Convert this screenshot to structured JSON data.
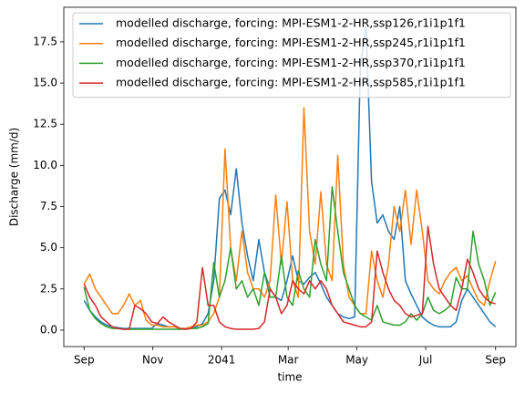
{
  "chart_data": {
    "type": "line",
    "x_label": "time",
    "y_label": "Discharge (mm/d)",
    "legend": "upper right",
    "x": [
      0,
      5,
      10,
      15,
      20,
      25,
      30,
      35,
      40,
      45,
      50,
      55,
      60,
      65,
      70,
      75,
      80,
      85,
      90,
      95,
      100,
      105,
      110,
      115,
      120,
      125,
      130,
      135,
      140,
      145,
      150,
      155,
      160,
      165,
      170,
      175,
      180,
      185,
      190,
      195,
      200,
      205,
      210,
      215,
      220,
      225,
      230,
      235,
      240,
      245,
      250,
      255,
      260,
      265,
      270,
      275,
      280,
      285,
      290,
      295,
      300,
      305,
      310,
      315,
      320,
      325,
      330,
      335,
      340,
      345,
      350,
      355,
      360,
      365
    ],
    "xlim": [
      -18,
      383
    ],
    "xticks": [
      {
        "value": 0,
        "label": "Sep"
      },
      {
        "value": 61,
        "label": "Nov"
      },
      {
        "value": 122,
        "label": "2041"
      },
      {
        "value": 181,
        "label": "Mar"
      },
      {
        "value": 242,
        "label": "May"
      },
      {
        "value": 303,
        "label": "Jul"
      },
      {
        "value": 365,
        "label": "Sep"
      }
    ],
    "ylim": [
      -1.0,
      19.6
    ],
    "yticks": [
      {
        "value": 0,
        "label": "0.0"
      },
      2.5,
      {
        "value": 5,
        "label": "5.0"
      },
      7.5,
      {
        "value": 10,
        "label": "10.0"
      },
      12.5,
      {
        "value": 15,
        "label": "15.0"
      },
      17.5
    ],
    "series": [
      {
        "name": "modelled discharge, forcing: MPI-ESM1-2-HR,ssp126,r1i1p1f1",
        "color": "#1f77b4",
        "values": [
          1.8,
          1.2,
          0.8,
          0.5,
          0.3,
          0.2,
          0.15,
          0.1,
          0.1,
          0.1,
          0.1,
          0.1,
          0.1,
          0.4,
          0.3,
          0.2,
          0.2,
          0.1,
          0.1,
          0.1,
          0.2,
          0.4,
          1.0,
          3.0,
          8.0,
          8.5,
          7.0,
          9.8,
          6.5,
          4.5,
          3.0,
          5.5,
          3.5,
          2.5,
          2.0,
          1.8,
          3.0,
          4.5,
          3.0,
          2.8,
          3.2,
          3.5,
          2.8,
          2.0,
          1.5,
          1.0,
          0.8,
          0.7,
          0.8,
          16.0,
          18.5,
          9.0,
          6.5,
          7.0,
          6.0,
          5.5,
          7.5,
          3.0,
          2.2,
          1.5,
          0.8,
          0.5,
          0.3,
          0.2,
          0.2,
          0.2,
          0.5,
          1.8,
          2.5,
          2.0,
          1.5,
          1.0,
          0.5,
          0.2
        ]
      },
      {
        "name": "modelled discharge, forcing: MPI-ESM1-2-HR,ssp245,r1i1p1f1",
        "color": "#ff7f0e",
        "values": [
          2.8,
          3.4,
          2.5,
          2.0,
          1.5,
          1.0,
          1.0,
          1.5,
          2.2,
          1.5,
          1.8,
          0.6,
          0.3,
          0.3,
          0.2,
          0.2,
          0.2,
          0.1,
          0.1,
          0.2,
          0.3,
          0.3,
          0.5,
          1.0,
          2.0,
          11.0,
          5.0,
          3.0,
          6.0,
          3.5,
          2.5,
          2.5,
          2.0,
          3.0,
          8.2,
          4.0,
          7.8,
          3.0,
          2.0,
          13.5,
          6.0,
          4.0,
          8.4,
          4.0,
          3.0,
          10.6,
          4.0,
          2.0,
          1.5,
          1.0,
          1.0,
          4.8,
          3.0,
          2.0,
          4.0,
          7.5,
          6.0,
          8.5,
          5.2,
          8.5,
          6.0,
          3.0,
          2.5,
          2.2,
          3.0,
          3.5,
          3.8,
          3.0,
          3.3,
          2.5,
          1.8,
          1.5,
          3.0,
          4.2
        ]
      },
      {
        "name": "modelled discharge, forcing: MPI-ESM1-2-HR,ssp370,r1i1p1f1",
        "color": "#2ca02c",
        "values": [
          2.6,
          1.2,
          0.7,
          0.4,
          0.2,
          0.1,
          0.1,
          0.05,
          0.05,
          0.05,
          0.05,
          0.05,
          0.05,
          0.05,
          0.05,
          0.05,
          0.05,
          0.05,
          0.05,
          0.1,
          0.1,
          0.2,
          0.4,
          4.1,
          2.0,
          3.0,
          5.0,
          2.5,
          3.0,
          2.0,
          2.5,
          1.5,
          3.5,
          2.0,
          2.0,
          4.5,
          2.0,
          1.5,
          3.6,
          2.5,
          2.0,
          5.5,
          4.0,
          3.0,
          8.7,
          6.0,
          3.5,
          2.5,
          1.5,
          1.0,
          0.8,
          0.6,
          1.5,
          0.5,
          0.4,
          0.3,
          0.3,
          0.5,
          1.0,
          0.6,
          1.0,
          2.0,
          1.2,
          1.0,
          1.2,
          1.5,
          3.2,
          2.5,
          2.5,
          6.0,
          4.0,
          3.0,
          1.5,
          2.3
        ]
      },
      {
        "name": "modelled discharge, forcing: MPI-ESM1-2-HR,ssp585,r1i1p1f1",
        "color": "#d62728",
        "values": [
          2.8,
          2.0,
          1.5,
          0.8,
          0.5,
          0.2,
          0.1,
          0.05,
          0.05,
          1.5,
          1.3,
          1.0,
          0.5,
          0.4,
          0.8,
          0.5,
          0.3,
          0.1,
          0.05,
          0.1,
          0.5,
          3.8,
          1.5,
          1.5,
          0.5,
          0.2,
          0.1,
          0.05,
          0.05,
          0.05,
          0.05,
          0.1,
          0.5,
          2.5,
          2.0,
          1.0,
          1.5,
          3.0,
          2.5,
          2.2,
          3.0,
          2.5,
          3.0,
          2.5,
          1.5,
          1.0,
          0.5,
          0.4,
          0.3,
          0.2,
          0.2,
          0.5,
          4.8,
          3.5,
          2.5,
          1.8,
          1.5,
          1.0,
          0.8,
          0.9,
          1.0,
          6.3,
          4.0,
          2.5,
          2.0,
          1.5,
          1.2,
          2.5,
          4.3,
          3.5,
          2.5,
          2.0,
          1.7,
          1.6
        ]
      }
    ]
  }
}
